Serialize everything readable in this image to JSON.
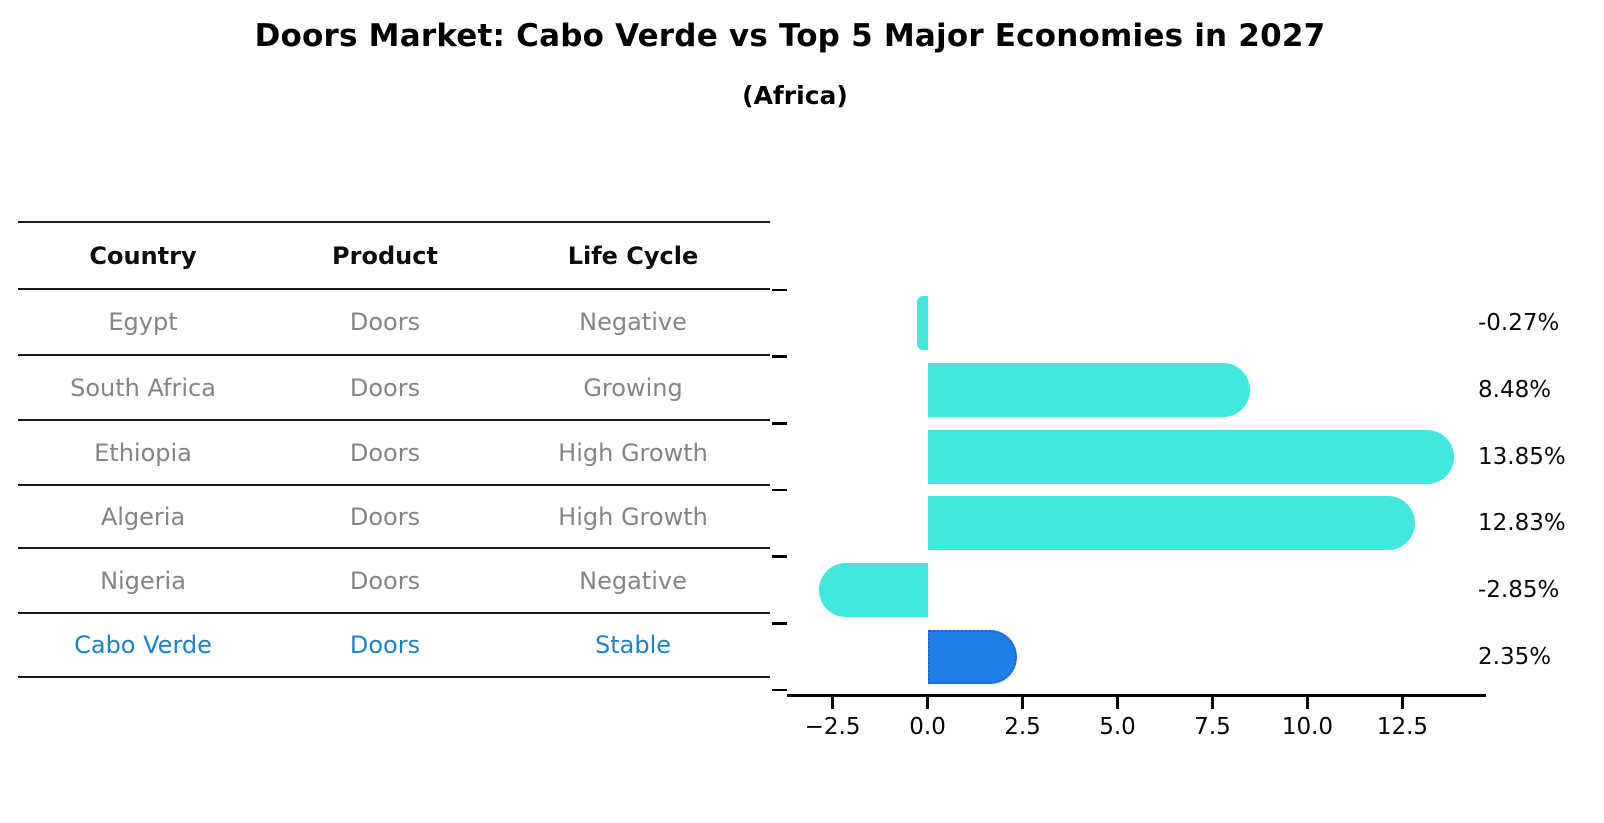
{
  "title": "Doors Market: Cabo Verde vs Top 5 Major Economies in 2027",
  "subtitle": "(Africa)",
  "table": {
    "headers": [
      "Country",
      "Product",
      "Life Cycle"
    ],
    "rows": [
      {
        "country": "Egypt",
        "product": "Doors",
        "life_cycle": "Negative",
        "highlight": false
      },
      {
        "country": "South Africa",
        "product": "Doors",
        "life_cycle": "Growing",
        "highlight": false
      },
      {
        "country": "Ethiopia",
        "product": "Doors",
        "life_cycle": "High Growth",
        "highlight": false
      },
      {
        "country": "Algeria",
        "product": "Doors",
        "life_cycle": "High Growth",
        "highlight": false
      },
      {
        "country": "Nigeria",
        "product": "Doors",
        "life_cycle": "Negative",
        "highlight": false
      },
      {
        "country": "Cabo Verde",
        "product": "Doors",
        "life_cycle": "Stable",
        "highlight": true
      }
    ]
  },
  "chart_data": {
    "type": "bar",
    "orientation": "horizontal",
    "title": "Doors Market: Cabo Verde vs Top 5 Major Economies in 2027 (Africa)",
    "categories": [
      "Egypt",
      "South Africa",
      "Ethiopia",
      "Algeria",
      "Nigeria",
      "Cabo Verde"
    ],
    "values": [
      -0.27,
      8.48,
      13.85,
      12.83,
      -2.85,
      2.35
    ],
    "value_labels": [
      "-0.27%",
      "8.48%",
      "13.85%",
      "12.83%",
      "-2.85%",
      "2.35%"
    ],
    "unit": "%",
    "xlabel": "",
    "ylabel": "",
    "xlim": [
      -3.7,
      14.7
    ],
    "x_ticks": [
      -2.5,
      0.0,
      2.5,
      5.0,
      7.5,
      10.0,
      12.5
    ],
    "x_tick_labels": [
      "−2.5",
      "0.0",
      "2.5",
      "5.0",
      "7.5",
      "10.0",
      "12.5"
    ],
    "grid": false,
    "legend": false,
    "highlight_index": 5
  },
  "colors": {
    "bar": "#42E7E0",
    "highlight_bar": "#1E7FE6",
    "highlight_edge": "#1863D6",
    "row_text": "#828689",
    "highlight_text": "#1D81CB",
    "axis_text": "#000000"
  }
}
